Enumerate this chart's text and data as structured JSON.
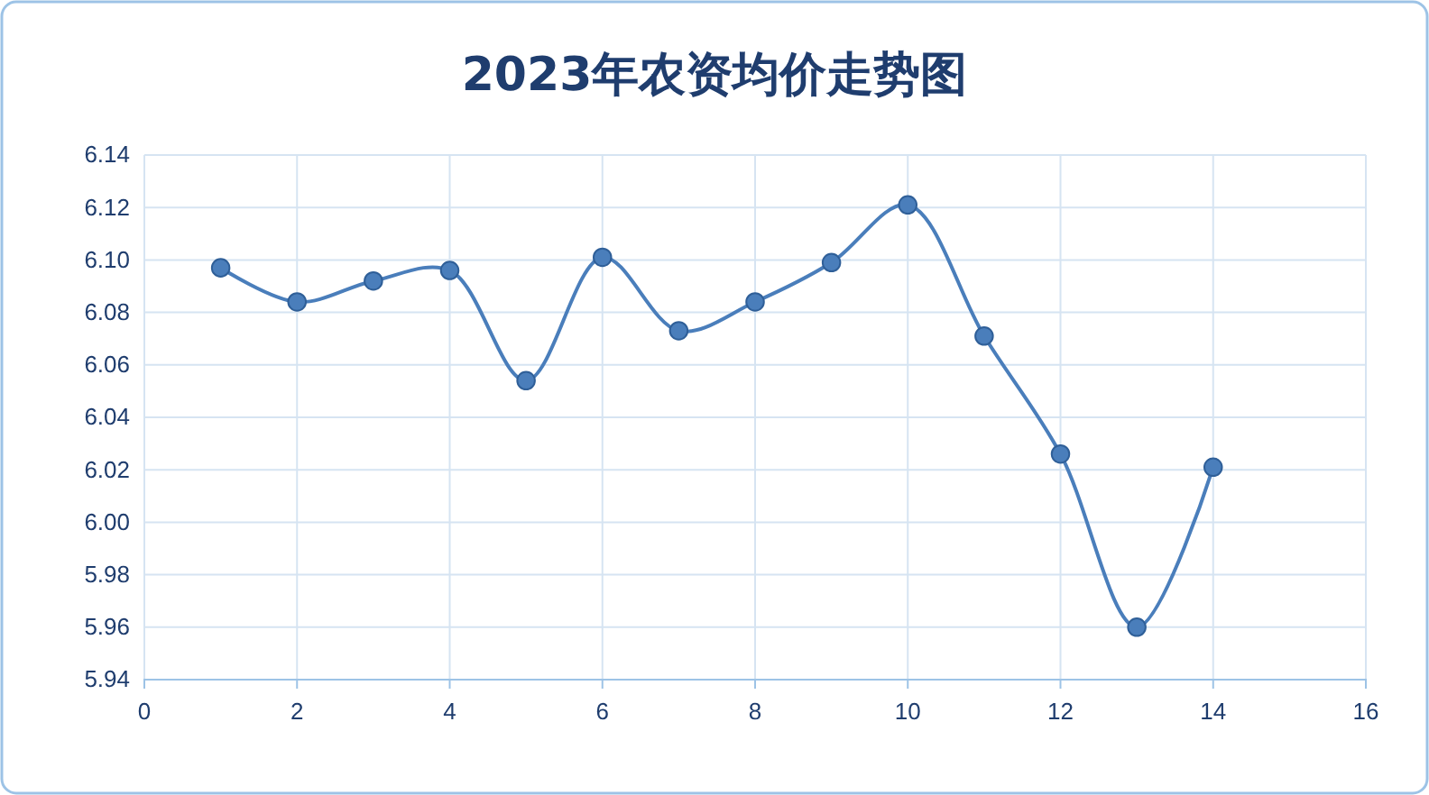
{
  "chart_data": {
    "type": "line",
    "title": "2023年农资均价走势图",
    "x": [
      1,
      2,
      3,
      4,
      5,
      6,
      7,
      8,
      9,
      10,
      11,
      12,
      13,
      14
    ],
    "series": [
      {
        "color": "#4a7ebb",
        "values": [
          6.097,
          6.084,
          6.092,
          6.096,
          6.054,
          6.101,
          6.073,
          6.084,
          6.099,
          6.121,
          6.071,
          6.026,
          5.96,
          6.021
        ]
      }
    ],
    "xlim": [
      0,
      16
    ],
    "xticks": [
      0,
      2,
      4,
      6,
      8,
      10,
      12,
      14,
      16
    ],
    "ylim": [
      5.94,
      6.14
    ],
    "yticks": [
      {
        "value": 5.94,
        "label": "5.94"
      },
      {
        "value": 5.96,
        "label": "5.96"
      },
      {
        "value": 5.98,
        "label": "5.98"
      },
      {
        "value": 6,
        "label": "6.00"
      },
      {
        "value": 6.02,
        "label": "6.02"
      },
      {
        "value": 6.04,
        "label": "6.04"
      },
      {
        "value": 6.06,
        "label": "6.06"
      },
      {
        "value": 6.08,
        "label": "6.08"
      },
      {
        "value": 6.1,
        "label": "6.10"
      },
      {
        "value": 6.12,
        "label": "6.12"
      },
      {
        "value": 6.14,
        "label": "6.14"
      }
    ],
    "grid": true,
    "marker": "circle",
    "line_style": "solid"
  }
}
